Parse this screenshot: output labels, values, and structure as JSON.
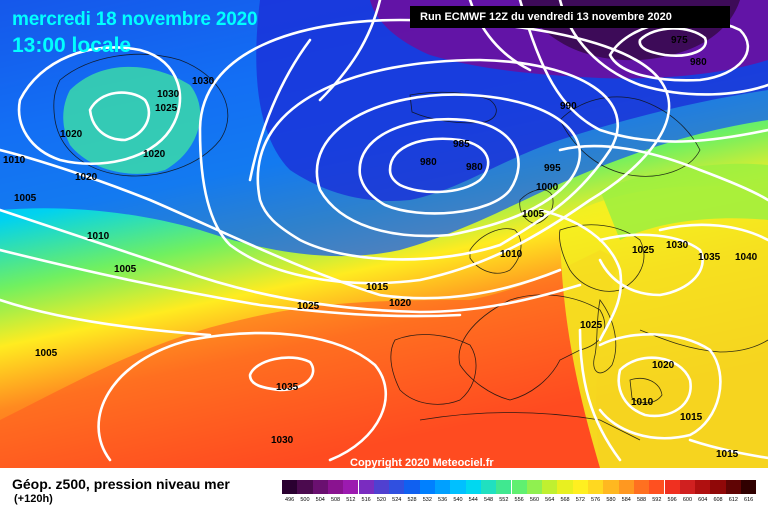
{
  "header": {
    "date": "mercredi 18 novembre 2020",
    "time": "13:00 locale",
    "run": "Run ECMWF 12Z du vendredi 13 novembre 2020"
  },
  "copyright": "Copyright 2020 Meteociel.fr",
  "footer": {
    "title": "Géop. z500, pression niveau mer",
    "subtitle": "(+120h)"
  },
  "scale": {
    "labels": [
      "496",
      "500",
      "504",
      "508",
      "512",
      "516",
      "520",
      "524",
      "528",
      "532",
      "536",
      "540",
      "544",
      "548",
      "552",
      "556",
      "560",
      "564",
      "568",
      "572",
      "576",
      "580",
      "584",
      "588",
      "592",
      "596",
      "600",
      "604",
      "608",
      "612",
      "616"
    ],
    "colors": [
      "#2a0030",
      "#4b0a4e",
      "#6a1070",
      "#8a1390",
      "#9c1ab0",
      "#7a2cc0",
      "#5040d0",
      "#3050e0",
      "#1060f0",
      "#0080ff",
      "#00a0ff",
      "#00c0ff",
      "#00d8f0",
      "#20e0c0",
      "#40e890",
      "#60f070",
      "#90f050",
      "#c0f030",
      "#e8f020",
      "#ffef20",
      "#ffd820",
      "#ffb820",
      "#ff9820",
      "#ff7020",
      "#ff5020",
      "#f03020",
      "#d02020",
      "#b01010",
      "#900808",
      "#600404",
      "#300000"
    ]
  },
  "pressure_labels": [
    "1030",
    "1030",
    "1025",
    "1020",
    "1020",
    "1020",
    "1010",
    "1005",
    "1010",
    "1005",
    "1005",
    "975",
    "980",
    "990",
    "985",
    "980",
    "980",
    "995",
    "1000",
    "1005",
    "1010",
    "1015",
    "1020",
    "1025",
    "1030",
    "1035",
    "1040",
    "1025",
    "1020",
    "1010",
    "1015",
    "1015",
    "1035",
    "1030",
    "1025"
  ],
  "palette": {
    "cyan_text": "#00ffff",
    "isobar": "#ffffff",
    "coast": "#111111"
  }
}
